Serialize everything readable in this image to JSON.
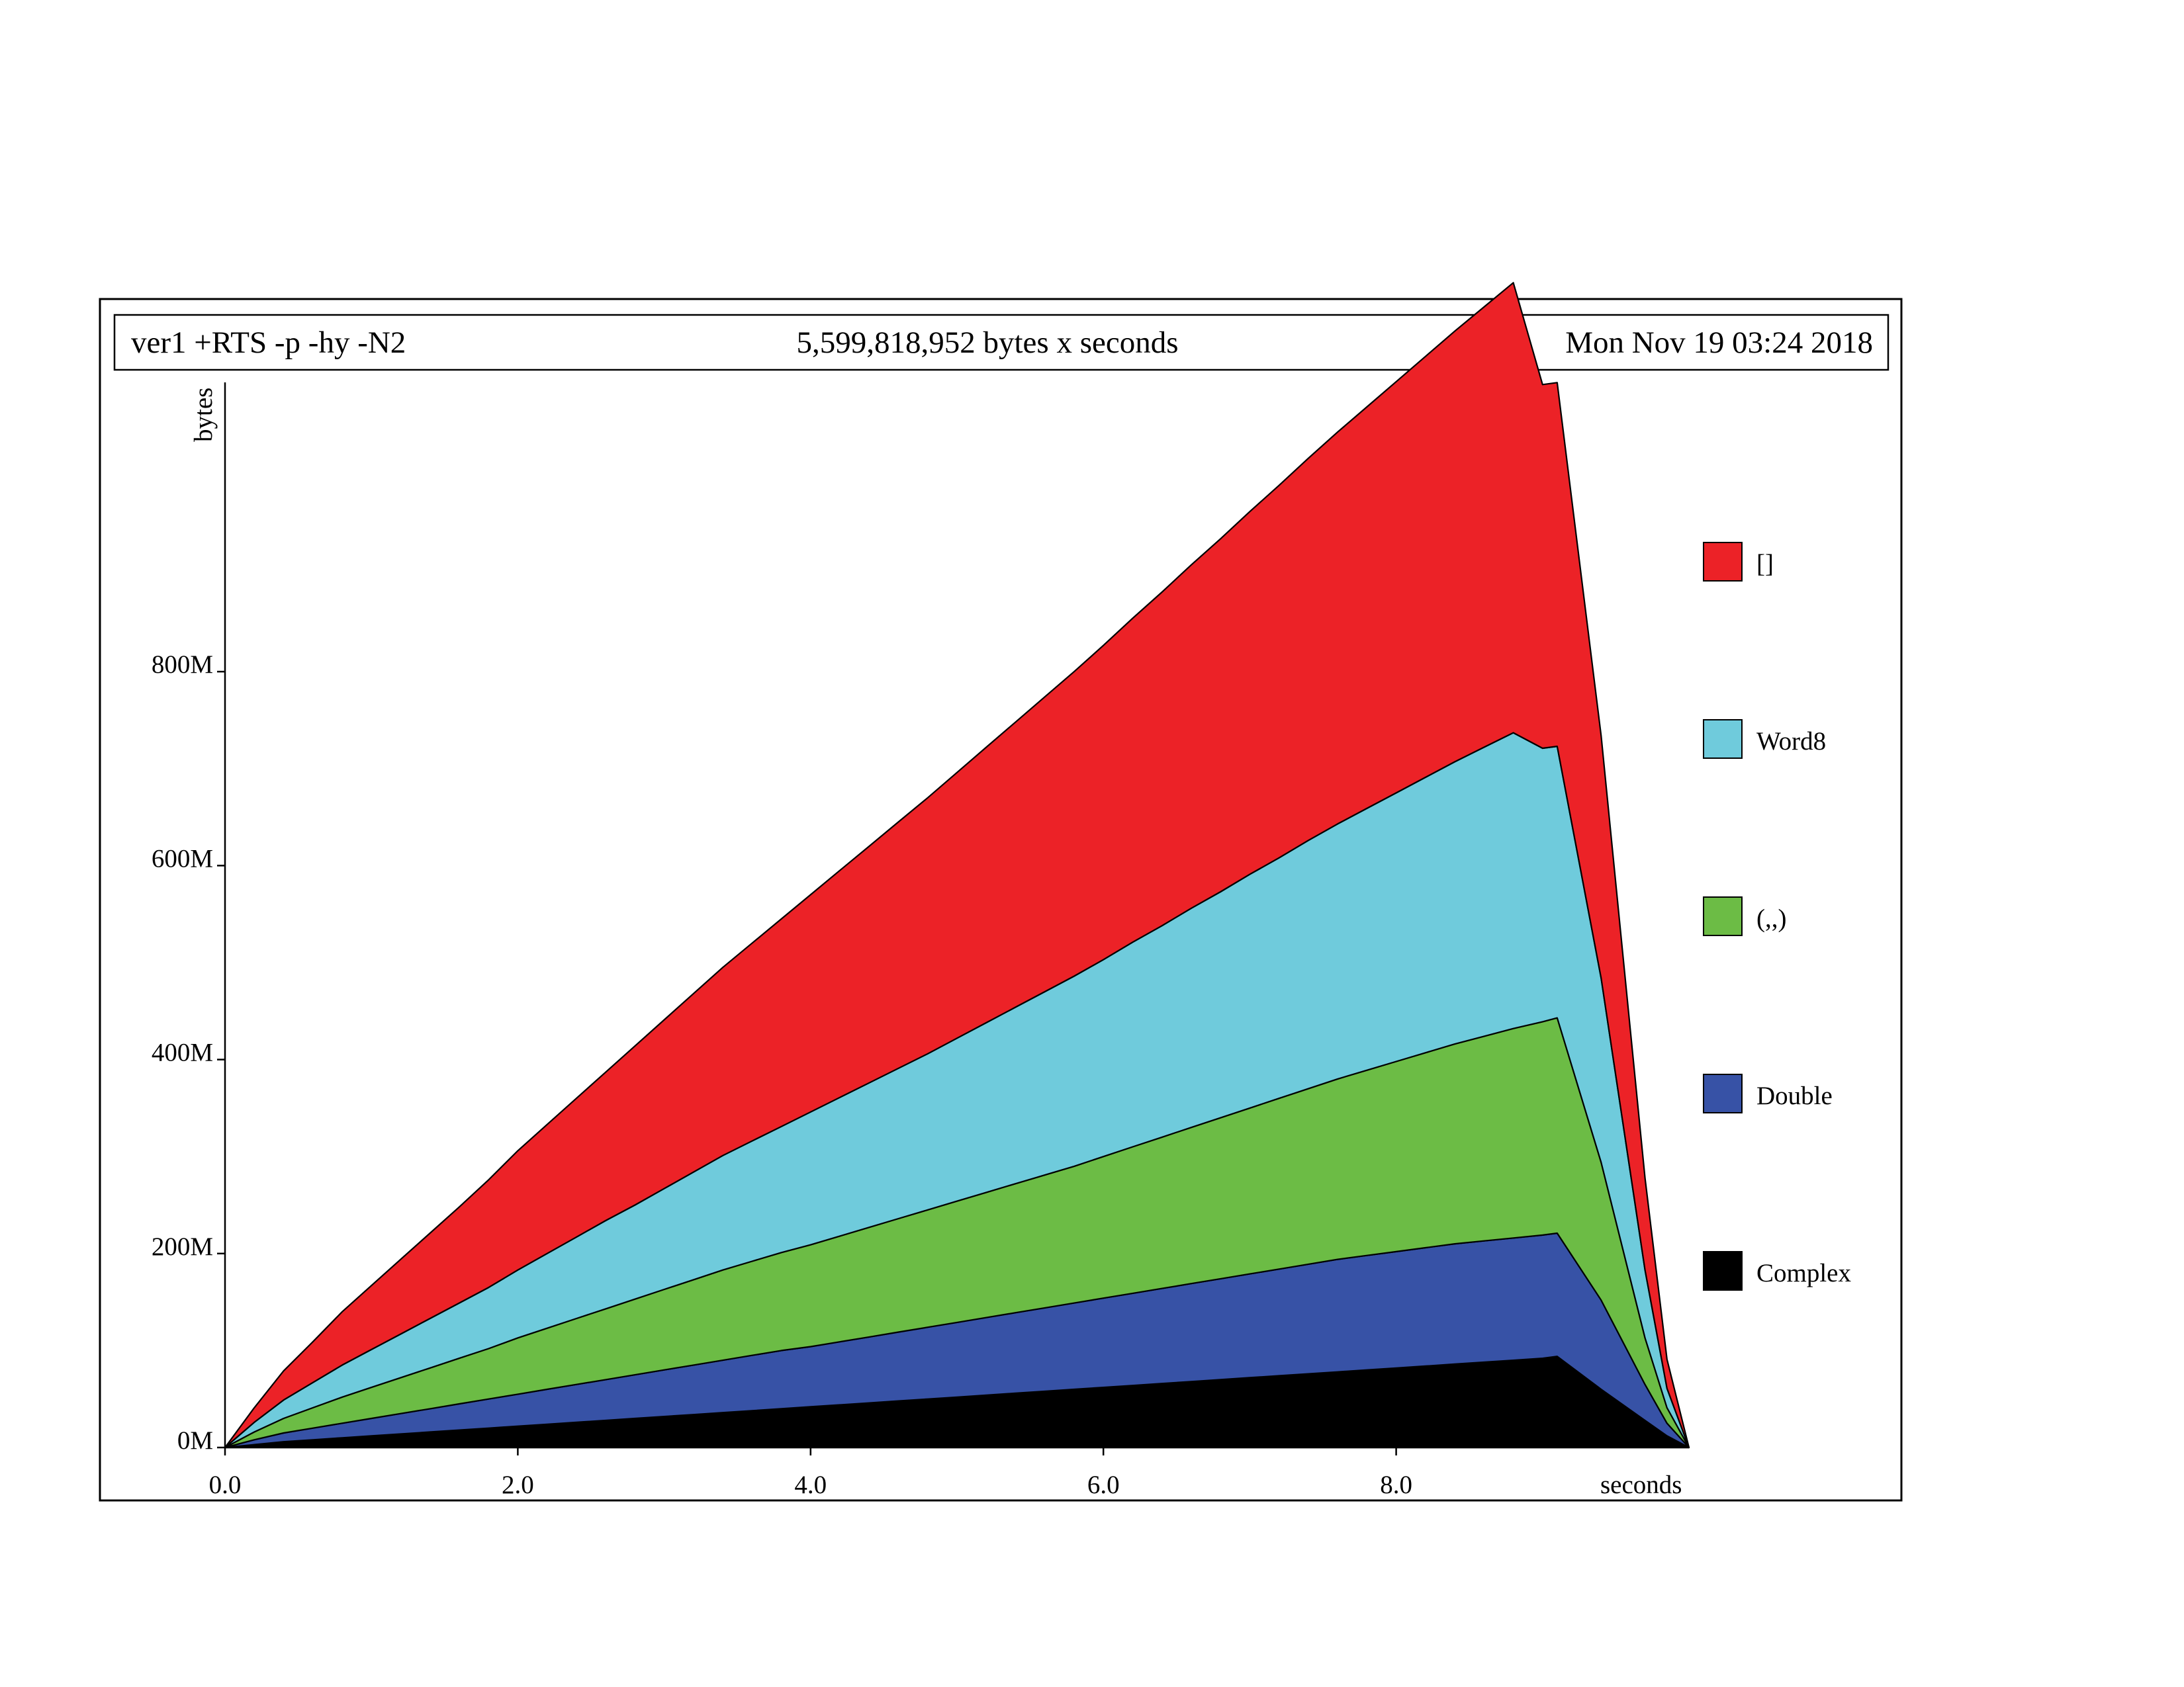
{
  "header": {
    "left": "ver1 +RTS -p -hy -N2",
    "center": "5,599,818,952 bytes x seconds",
    "right": "Mon Nov 19 03:24 2018"
  },
  "chart_data": {
    "type": "area",
    "stacked": true,
    "title": "5,599,818,952 bytes x seconds",
    "xlabel": "seconds",
    "ylabel": "bytes",
    "xlim": [
      0,
      10
    ],
    "ylim": [
      0,
      1100
    ],
    "y_unit": "M bytes",
    "x_ticks": [
      "0.0",
      "2.0",
      "4.0",
      "6.0",
      "8.0"
    ],
    "y_ticks": [
      "0M",
      "200M",
      "400M",
      "600M",
      "800M"
    ],
    "legend_position": "right",
    "x": [
      0,
      0.2,
      0.4,
      0.6,
      0.8,
      1.0,
      1.2,
      1.4,
      1.6,
      1.8,
      2.0,
      2.2,
      2.4,
      2.6,
      2.8,
      3.0,
      3.2,
      3.4,
      3.6,
      3.8,
      4.0,
      4.2,
      4.4,
      4.6,
      4.8,
      5.0,
      5.2,
      5.4,
      5.6,
      5.8,
      6.0,
      6.2,
      6.4,
      6.6,
      6.8,
      7.0,
      7.2,
      7.4,
      7.6,
      7.8,
      8.0,
      8.2,
      8.4,
      8.6,
      8.8,
      9.0,
      9.1,
      9.4,
      9.7,
      9.85,
      10.0
    ],
    "series": [
      {
        "name": "Complex",
        "color": "#000000",
        "values": [
          0,
          3,
          6,
          8,
          10,
          12,
          14,
          16,
          18,
          20,
          22,
          24,
          26,
          28,
          30,
          32,
          34,
          36,
          38,
          40,
          42,
          44,
          46,
          48,
          50,
          52,
          54,
          56,
          58,
          60,
          62,
          64,
          66,
          68,
          70,
          72,
          74,
          76,
          78,
          80,
          82,
          84,
          86,
          88,
          90,
          92,
          94,
          60,
          28,
          12,
          0
        ]
      },
      {
        "name": "Double",
        "color": "#3752a6",
        "values": [
          0,
          5,
          9,
          12,
          15,
          18,
          21,
          24,
          27,
          30,
          33,
          36,
          39,
          42,
          45,
          48,
          51,
          54,
          57,
          60,
          62,
          65,
          68,
          71,
          74,
          77,
          80,
          83,
          86,
          89,
          92,
          95,
          98,
          101,
          104,
          107,
          110,
          113,
          116,
          118,
          120,
          122,
          124,
          125,
          126,
          127,
          127,
          92,
          37,
          13,
          0
        ]
      },
      {
        "name": "(,,)",
        "color": "#6cbc45",
        "values": [
          0,
          8,
          15,
          21,
          27,
          32,
          37,
          42,
          47,
          52,
          58,
          63,
          68,
          73,
          78,
          83,
          88,
          93,
          97,
          101,
          105,
          109,
          113,
          117,
          121,
          125,
          129,
          133,
          137,
          141,
          146,
          151,
          156,
          161,
          166,
          171,
          176,
          181,
          186,
          191,
          196,
          201,
          206,
          211,
          216,
          220,
          222,
          142,
          48,
          16,
          0
        ]
      },
      {
        "name": "Word8",
        "color": "#6fcbdc",
        "values": [
          0,
          10,
          19,
          26,
          33,
          39,
          45,
          51,
          57,
          63,
          70,
          77,
          84,
          91,
          97,
          104,
          111,
          118,
          124,
          130,
          137,
          143,
          149,
          155,
          161,
          168,
          175,
          182,
          189,
          196,
          203,
          211,
          218,
          226,
          233,
          241,
          248,
          256,
          263,
          270,
          277,
          284,
          291,
          298,
          305,
          282,
          280,
          190,
          70,
          20,
          0
        ]
      },
      {
        "name": "[]",
        "color": "#ec2227",
        "values": [
          0,
          15,
          30,
          42,
          55,
          66,
          77,
          88,
          99,
          111,
          123,
          133,
          143,
          153,
          164,
          174,
          184,
          194,
          204,
          214,
          224,
          234,
          244,
          254,
          264,
          274,
          284,
          294,
          304,
          314,
          324,
          334,
          344,
          354,
          364,
          374,
          384,
          394,
          404,
          414,
          424,
          434,
          444,
          454,
          464,
          375,
          375,
          250,
          95,
          30,
          0
        ]
      }
    ]
  }
}
